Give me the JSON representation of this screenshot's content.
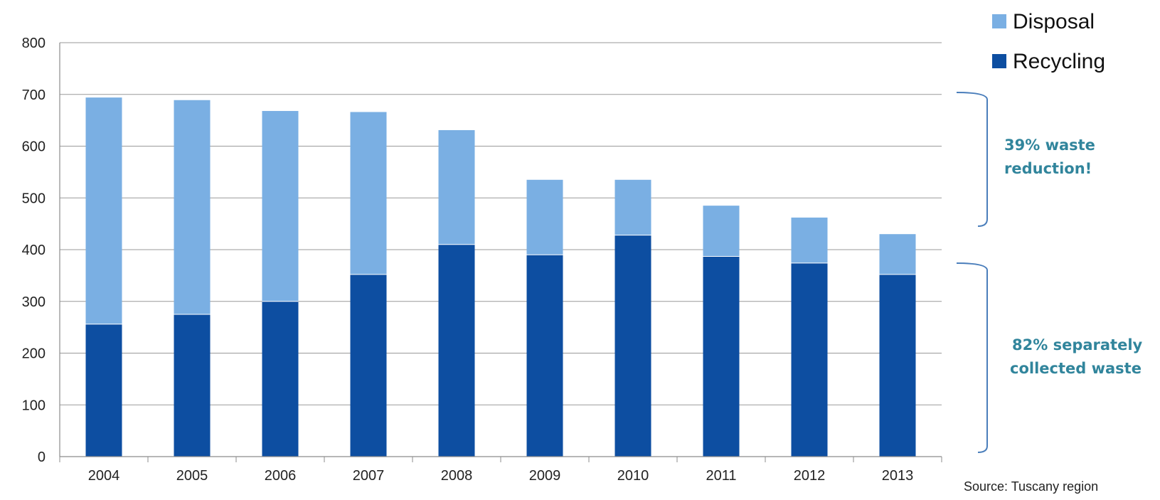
{
  "chart_data": {
    "type": "bar",
    "stacked": true,
    "categories": [
      "2004",
      "2005",
      "2006",
      "2007",
      "2008",
      "2009",
      "2010",
      "2011",
      "2012",
      "2013"
    ],
    "series": [
      {
        "name": "Recycling",
        "color": "#0d4ea1",
        "values": [
          256,
          275,
          300,
          352,
          410,
          390,
          428,
          387,
          374,
          352
        ]
      },
      {
        "name": "Disposal",
        "color": "#7aafe3",
        "values": [
          438,
          414,
          368,
          314,
          221,
          145,
          107,
          98,
          88,
          78
        ]
      }
    ],
    "title": "",
    "xlabel": "",
    "ylabel": "",
    "ylim": [
      0,
      800
    ],
    "yticks": [
      "0",
      "100",
      "200",
      "300",
      "400",
      "500",
      "600",
      "700",
      "800"
    ],
    "grid": true,
    "legend": {
      "position": "top-right",
      "entries": [
        "Disposal",
        "Recycling"
      ]
    },
    "annotations": {
      "reduction": [
        "39% waste",
        "reduction!"
      ],
      "collected": [
        "82% separately",
        "collected waste"
      ],
      "annotation_color": "#31859c"
    },
    "source": "Source:  Tuscany region"
  }
}
